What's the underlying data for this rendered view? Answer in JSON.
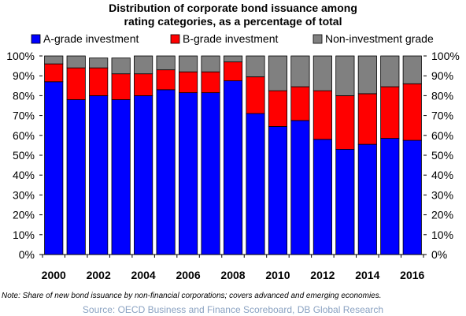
{
  "chart_data": {
    "type": "bar",
    "stacked": true,
    "title_lines": [
      "Distribution of corporate bond issuance among",
      "rating categories, as a percentage of total"
    ],
    "categories": [
      "2000",
      "2001",
      "2002",
      "2003",
      "2004",
      "2005",
      "2006",
      "2007",
      "2008",
      "2009",
      "2010",
      "2011",
      "2012",
      "2013",
      "2014",
      "2015",
      "2016"
    ],
    "xtick_labels": [
      "2000",
      "2002",
      "2004",
      "2006",
      "2008",
      "2010",
      "2012",
      "2014",
      "2016"
    ],
    "xtick_years": [
      2000,
      2002,
      2004,
      2006,
      2008,
      2010,
      2012,
      2014,
      2016
    ],
    "yticks_left": [
      "0%",
      "10%",
      "20%",
      "30%",
      "40%",
      "50%",
      "60%",
      "70%",
      "80%",
      "90%",
      "100%"
    ],
    "yticks_right": [
      "0%",
      "10%",
      "20%",
      "30%",
      "40%",
      "50%",
      "60%",
      "70%",
      "80%",
      "90%",
      "100%"
    ],
    "ylim": [
      0,
      100
    ],
    "legend_position": "top",
    "series": [
      {
        "name": "A-grade investment",
        "color": "#0000ff",
        "values": [
          87,
          78,
          80,
          78,
          80,
          83,
          81.5,
          81.5,
          87.5,
          71,
          64.5,
          67.5,
          58,
          53,
          55.5,
          58.5,
          57.5
        ]
      },
      {
        "name": "B-grade investment",
        "color": "#ff0000",
        "values": [
          9,
          16,
          14,
          13,
          11,
          10,
          10.5,
          10.5,
          9.5,
          18.5,
          18,
          17,
          24.5,
          27,
          25.5,
          26,
          28.5
        ]
      },
      {
        "name": "Non-investment grade",
        "color": "#808080",
        "values": [
          4,
          6,
          5,
          8,
          9,
          7,
          8,
          8,
          3,
          10.5,
          17.5,
          15.5,
          17.5,
          20,
          19,
          15.5,
          14
        ]
      }
    ],
    "note": "Note: Share of new bond issuance by non-financial corporations; covers advanced and emerging economies.",
    "source": "Source: OECD Business and Finance Scoreboard, DB Global Research"
  }
}
